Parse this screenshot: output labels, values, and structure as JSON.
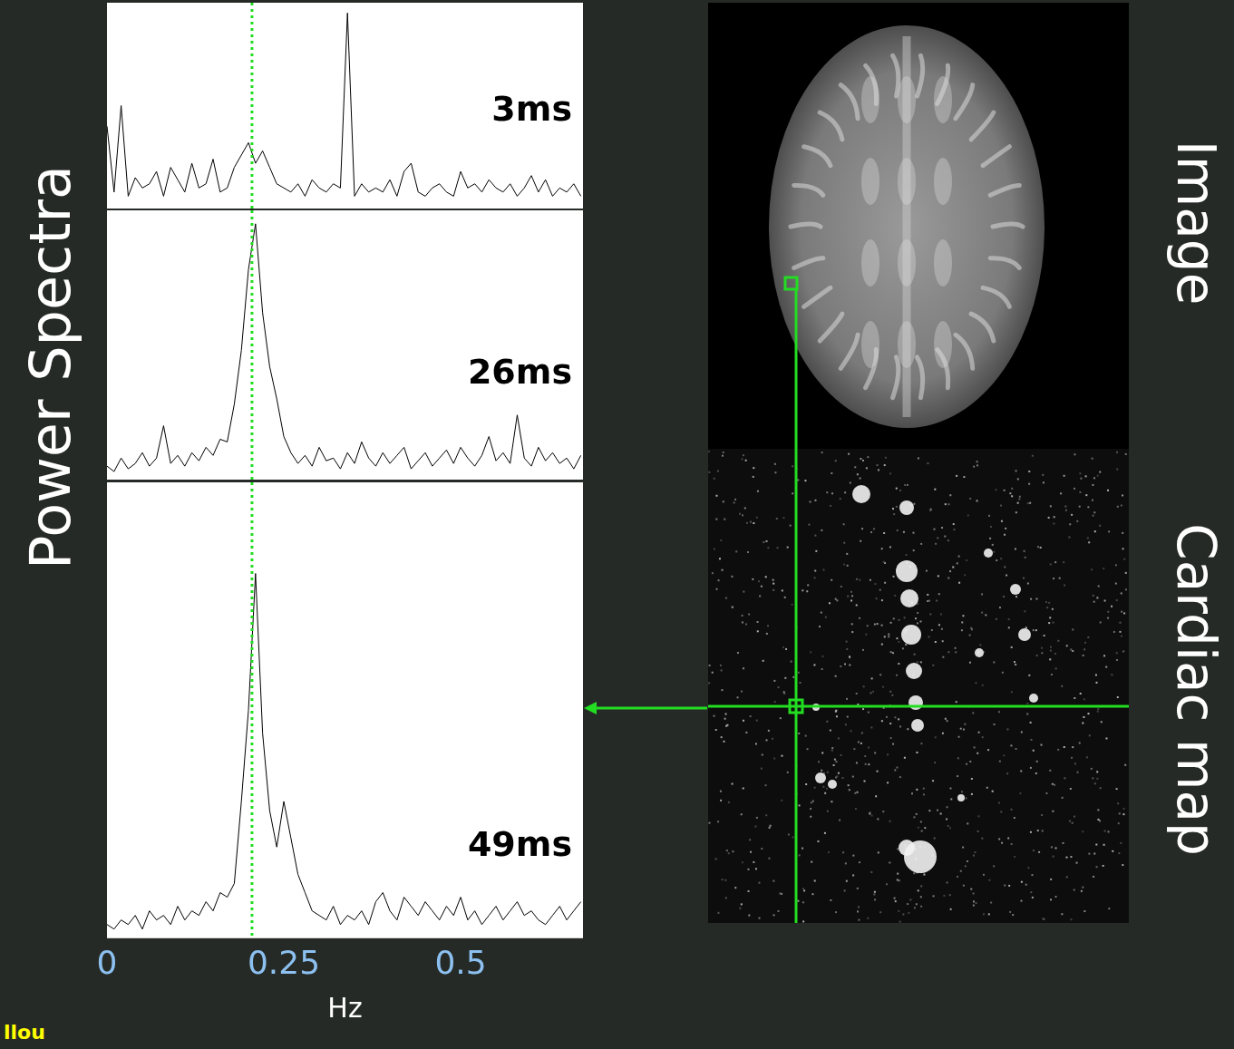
{
  "chart_data": [
    {
      "type": "line",
      "title": "3ms",
      "x": [
        0,
        0.01,
        0.02,
        0.03,
        0.04,
        0.05,
        0.06,
        0.07,
        0.08,
        0.09,
        0.1,
        0.11,
        0.12,
        0.13,
        0.14,
        0.15,
        0.16,
        0.17,
        0.18,
        0.19,
        0.2,
        0.21,
        0.22,
        0.23,
        0.24,
        0.25,
        0.26,
        0.27,
        0.28,
        0.29,
        0.3,
        0.31,
        0.32,
        0.33,
        0.34,
        0.35,
        0.36,
        0.37,
        0.38,
        0.39,
        0.4,
        0.41,
        0.42,
        0.43,
        0.44,
        0.45,
        0.46,
        0.47,
        0.48,
        0.49,
        0.5,
        0.51,
        0.52,
        0.53,
        0.54,
        0.55,
        0.56,
        0.57,
        0.58,
        0.59,
        0.6,
        0.61,
        0.62,
        0.63,
        0.64,
        0.65,
        0.66,
        0.67
      ],
      "values": [
        40,
        8,
        50,
        6,
        15,
        10,
        12,
        18,
        6,
        20,
        14,
        8,
        22,
        10,
        12,
        24,
        8,
        10,
        20,
        26,
        32,
        22,
        28,
        20,
        12,
        10,
        8,
        12,
        6,
        14,
        10,
        8,
        12,
        10,
        95,
        6,
        12,
        8,
        10,
        8,
        14,
        6,
        18,
        22,
        8,
        6,
        10,
        12,
        8,
        6,
        18,
        10,
        12,
        8,
        14,
        10,
        8,
        12,
        6,
        10,
        16,
        8,
        14,
        6,
        10,
        8,
        12,
        6
      ],
      "color": "#000000",
      "xlim": [
        0,
        0.673
      ],
      "xticks": [
        0,
        0.25,
        0.5
      ],
      "ylim": [
        0,
        100
      ],
      "grid": false,
      "tick_labels": false,
      "reference_x": 0.205
    },
    {
      "type": "line",
      "title": "26ms",
      "x": [
        0,
        0.01,
        0.02,
        0.03,
        0.04,
        0.05,
        0.06,
        0.07,
        0.08,
        0.09,
        0.1,
        0.11,
        0.12,
        0.13,
        0.14,
        0.15,
        0.16,
        0.17,
        0.18,
        0.19,
        0.2,
        0.21,
        0.22,
        0.23,
        0.24,
        0.25,
        0.26,
        0.27,
        0.28,
        0.29,
        0.3,
        0.31,
        0.32,
        0.33,
        0.34,
        0.35,
        0.36,
        0.37,
        0.38,
        0.39,
        0.4,
        0.41,
        0.42,
        0.43,
        0.44,
        0.45,
        0.46,
        0.47,
        0.48,
        0.49,
        0.5,
        0.51,
        0.52,
        0.53,
        0.54,
        0.55,
        0.56,
        0.57,
        0.58,
        0.59,
        0.6,
        0.61,
        0.62,
        0.63,
        0.64,
        0.65,
        0.66,
        0.67
      ],
      "values": [
        5,
        3,
        8,
        4,
        6,
        10,
        5,
        8,
        20,
        6,
        9,
        5,
        10,
        7,
        12,
        9,
        15,
        14,
        28,
        48,
        78,
        95,
        62,
        42,
        30,
        16,
        10,
        6,
        9,
        5,
        12,
        7,
        8,
        4,
        10,
        6,
        14,
        8,
        5,
        10,
        6,
        9,
        12,
        4,
        7,
        10,
        5,
        8,
        11,
        6,
        12,
        8,
        5,
        9,
        16,
        7,
        10,
        6,
        24,
        8,
        5,
        12,
        7,
        10,
        6,
        8,
        4,
        9
      ],
      "color": "#000000",
      "xlim": [
        0,
        0.673
      ],
      "xticks": [
        0,
        0.25,
        0.5
      ],
      "ylim": [
        0,
        100
      ],
      "grid": false,
      "tick_labels": false,
      "reference_x": 0.205
    },
    {
      "type": "line",
      "title": "49ms",
      "x_label": "Hz",
      "x": [
        0,
        0.01,
        0.02,
        0.03,
        0.04,
        0.05,
        0.06,
        0.07,
        0.08,
        0.09,
        0.1,
        0.11,
        0.12,
        0.13,
        0.14,
        0.15,
        0.16,
        0.17,
        0.18,
        0.19,
        0.2,
        0.21,
        0.22,
        0.23,
        0.24,
        0.25,
        0.26,
        0.27,
        0.28,
        0.29,
        0.3,
        0.31,
        0.32,
        0.33,
        0.34,
        0.35,
        0.36,
        0.37,
        0.38,
        0.39,
        0.4,
        0.41,
        0.42,
        0.43,
        0.44,
        0.45,
        0.46,
        0.47,
        0.48,
        0.49,
        0.5,
        0.51,
        0.52,
        0.53,
        0.54,
        0.55,
        0.56,
        0.57,
        0.58,
        0.59,
        0.6,
        0.61,
        0.62,
        0.63,
        0.64,
        0.65,
        0.66,
        0.67
      ],
      "values": [
        3,
        2,
        4,
        3,
        5,
        2,
        6,
        4,
        5,
        3,
        7,
        4,
        6,
        5,
        8,
        6,
        10,
        9,
        12,
        30,
        50,
        80,
        45,
        28,
        20,
        30,
        22,
        14,
        10,
        6,
        5,
        4,
        7,
        3,
        5,
        4,
        6,
        3,
        8,
        10,
        6,
        4,
        9,
        7,
        5,
        8,
        6,
        4,
        7,
        5,
        9,
        4,
        6,
        3,
        5,
        7,
        4,
        6,
        8,
        5,
        6,
        4,
        3,
        5,
        7,
        4,
        6,
        8
      ],
      "color": "#000000",
      "xlim": [
        0,
        0.673
      ],
      "xticks": [
        0,
        0.25,
        0.5
      ],
      "ylim": [
        0,
        100
      ],
      "grid": false,
      "tick_labels": "x",
      "reference_x": 0.205
    }
  ],
  "page": {
    "left_title": "Power Spectra",
    "right_titles": [
      "Image",
      "Cardiac map"
    ],
    "footer": "llou"
  }
}
